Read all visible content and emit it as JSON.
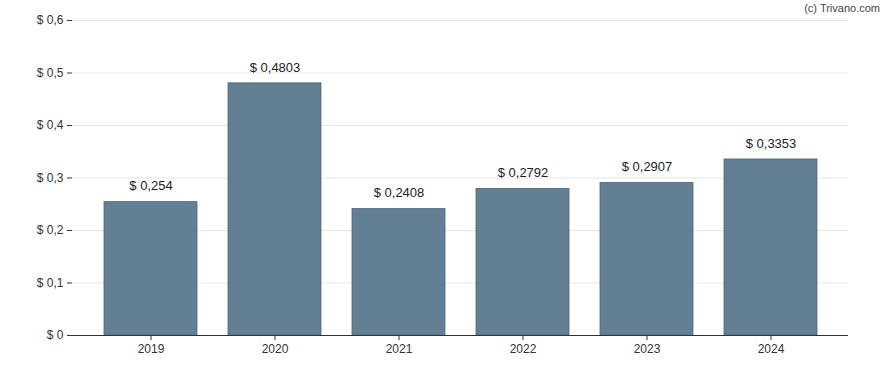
{
  "chart_data": {
    "type": "bar",
    "caption": "(c) Trivano.com",
    "categories": [
      "2019",
      "2020",
      "2021",
      "2022",
      "2023",
      "2024"
    ],
    "values": [
      0.254,
      0.4803,
      0.2408,
      0.2792,
      0.2907,
      0.3353
    ],
    "value_labels": [
      "$ 0,254",
      "$ 0,4803",
      "$ 0,2408",
      "$ 0,2792",
      "$ 0,2907",
      "$ 0,3353"
    ],
    "data_labels": true,
    "color": "#637f93",
    "ylim": [
      0,
      0.6
    ],
    "yticks": [
      {
        "value": 0,
        "label": "$ 0"
      },
      {
        "value": 0.1,
        "label": "$ 0,1"
      },
      {
        "value": 0.2,
        "label": "$ 0,2"
      },
      {
        "value": 0.3,
        "label": "$ 0,3"
      },
      {
        "value": 0.4,
        "label": "$ 0,4"
      },
      {
        "value": 0.5,
        "label": "$ 0,5"
      },
      {
        "value": 0.6,
        "label": "$ 0,6"
      }
    ],
    "grid": true
  }
}
